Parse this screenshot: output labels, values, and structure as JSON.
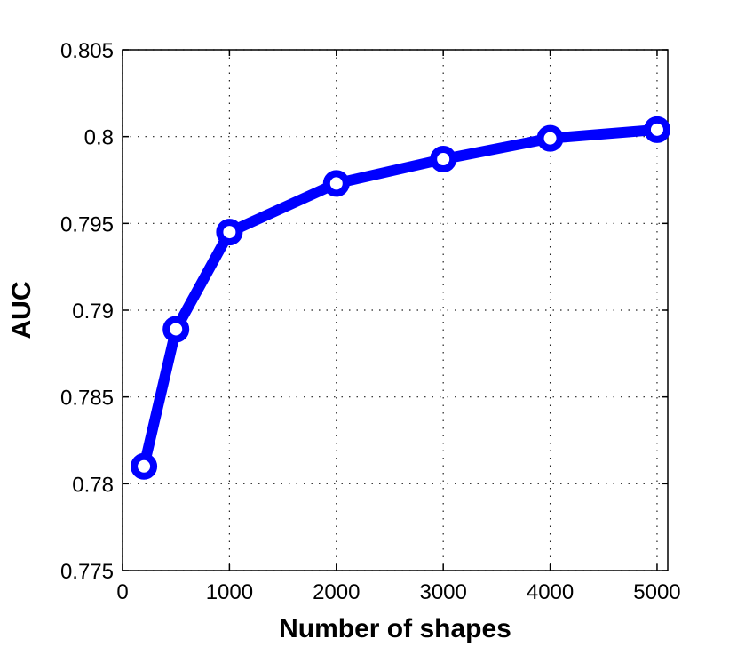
{
  "chart_data": {
    "type": "line",
    "title": "",
    "xlabel": "Number of shapes",
    "ylabel": "AUC",
    "xlim": [
      0,
      5100
    ],
    "ylim": [
      0.775,
      0.805
    ],
    "xticks": [
      0,
      1000,
      2000,
      3000,
      4000,
      5000
    ],
    "xtick_labels": [
      "0",
      "1000",
      "2000",
      "3000",
      "4000",
      "5000"
    ],
    "yticks": [
      0.775,
      0.78,
      0.785,
      0.79,
      0.795,
      0.8,
      0.805
    ],
    "ytick_labels": [
      "0.775",
      "0.78",
      "0.785",
      "0.79",
      "0.795",
      "0.8",
      "0.805"
    ],
    "grid": true,
    "series": [
      {
        "color": "#0000ff",
        "marker": "circle",
        "x": [
          200,
          500,
          1000,
          2000,
          3000,
          4000,
          5000
        ],
        "y": [
          0.781,
          0.7889,
          0.7945,
          0.7973,
          0.7987,
          0.7999,
          0.8004
        ]
      }
    ]
  }
}
